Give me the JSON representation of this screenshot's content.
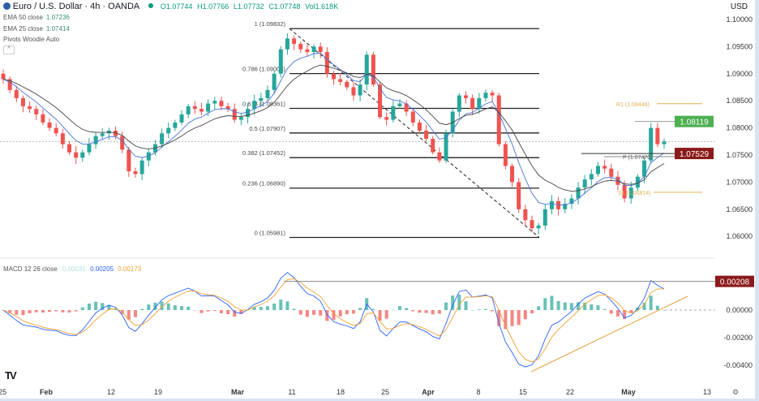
{
  "header": {
    "symbol_icon": "euro-dollar-flag-icon",
    "title": "Euro / U.S. Dollar · 4h · OANDA",
    "status_dot_color": "#089981",
    "open": "O1.07744",
    "high": "H1.07766",
    "low": "L1.07732",
    "close": "C1.07748",
    "volume": "Vol1.618K"
  },
  "indicators": [
    {
      "label": "EMA 50 close",
      "value": "1.07236"
    },
    {
      "label": "EMA 25 close",
      "value": "1.07414"
    },
    {
      "label": "Pivots Woodie Auto",
      "value": ""
    }
  ],
  "currency": "USD",
  "macd": {
    "label": "MACD 12 26 close",
    "hist": "0.00031",
    "macd": "0.00205",
    "signal": "0.00173",
    "last_label": "0.00208"
  },
  "colors": {
    "up": "#26a69a",
    "down": "#ef5350",
    "ema_fast": "#2962ff",
    "ema_slow": "#555555",
    "pivot": "#e0b050",
    "green_label": "#4caf50",
    "red_label": "#8b1a1a",
    "macd_line": "#2962ff",
    "signal_line": "#f0a030"
  },
  "chart_data": {
    "type": "candlestick",
    "x_ticks": [
      "25",
      "Feb",
      "12",
      "19",
      "Mar",
      "11",
      "18",
      "25",
      "Apr",
      "8",
      "15",
      "22",
      "May",
      "13"
    ],
    "y_ticks": [
      "1.10000",
      "1.09500",
      "1.09000",
      "1.08500",
      "1.08000",
      "1.07500",
      "1.07000",
      "1.06500",
      "1.06000"
    ],
    "ylim": [
      1.0575,
      1.1
    ],
    "closes": [
      1.089,
      1.087,
      1.0855,
      1.084,
      1.0835,
      1.0825,
      1.081,
      1.08,
      1.079,
      1.077,
      1.0755,
      1.0745,
      1.0755,
      1.077,
      1.0785,
      1.079,
      1.0795,
      1.0785,
      1.076,
      1.072,
      1.0715,
      1.074,
      1.0755,
      1.077,
      1.079,
      1.08,
      1.081,
      1.0825,
      1.084,
      1.0835,
      1.083,
      1.0845,
      1.085,
      1.084,
      1.0835,
      1.0815,
      1.082,
      1.0835,
      1.085,
      1.0855,
      1.087,
      1.09,
      1.0945,
      1.0965,
      1.0955,
      1.0945,
      1.094,
      1.095,
      1.094,
      1.09,
      1.089,
      1.0885,
      1.0875,
      1.086,
      1.088,
      1.0935,
      1.088,
      1.082,
      1.0815,
      1.084,
      1.0845,
      1.083,
      1.081,
      1.0795,
      1.078,
      1.0755,
      1.074,
      1.079,
      1.083,
      1.086,
      1.0855,
      1.0835,
      1.0855,
      1.0865,
      1.086,
      1.077,
      1.073,
      1.07,
      1.065,
      1.063,
      1.0615,
      1.062,
      1.065,
      1.0665,
      1.065,
      1.066,
      1.067,
      1.069,
      1.0705,
      1.0715,
      1.073,
      1.0725,
      1.071,
      1.0695,
      1.067,
      1.069,
      1.071,
      1.074,
      1.08,
      1.077,
      1.0775
    ],
    "fib_levels": [
      {
        "level": 1,
        "price": 1.09832,
        "label": "1 (1.09832)"
      },
      {
        "level": 0.786,
        "price": 1.09003,
        "label": "0.786 (1.09003)"
      },
      {
        "level": 0.618,
        "price": 1.08361,
        "label": "0.618 (1.08361)"
      },
      {
        "level": 0.5,
        "price": 1.07907,
        "label": "0.5 (1.07907)"
      },
      {
        "level": 0.382,
        "price": 1.07452,
        "label": "0.382 (1.07452)"
      },
      {
        "level": 0.236,
        "price": 1.0689,
        "label": "0.236 (1.06890)"
      },
      {
        "level": 0,
        "price": 1.05981,
        "label": "0 (1.05981)"
      }
    ],
    "pivots": [
      {
        "name": "R1",
        "price": 1.08446,
        "label": "R1 (1.08446)"
      },
      {
        "name": "P",
        "price": 1.0747,
        "label": "P (1.07470)"
      },
      {
        "name": "S1",
        "price": 1.06814,
        "label": "S1 (1.06814)"
      }
    ],
    "price_labels": [
      {
        "price": 1.08119,
        "label": "1.08119",
        "color": "green"
      },
      {
        "price": 1.07529,
        "label": "1.07529",
        "color": "red"
      }
    ],
    "current_price": 1.07748,
    "macd_y_ticks": [
      "0.00000",
      "-0.00200",
      "-0.00400"
    ],
    "macd_ylim": [
      -0.0047,
      0.0033
    ]
  }
}
